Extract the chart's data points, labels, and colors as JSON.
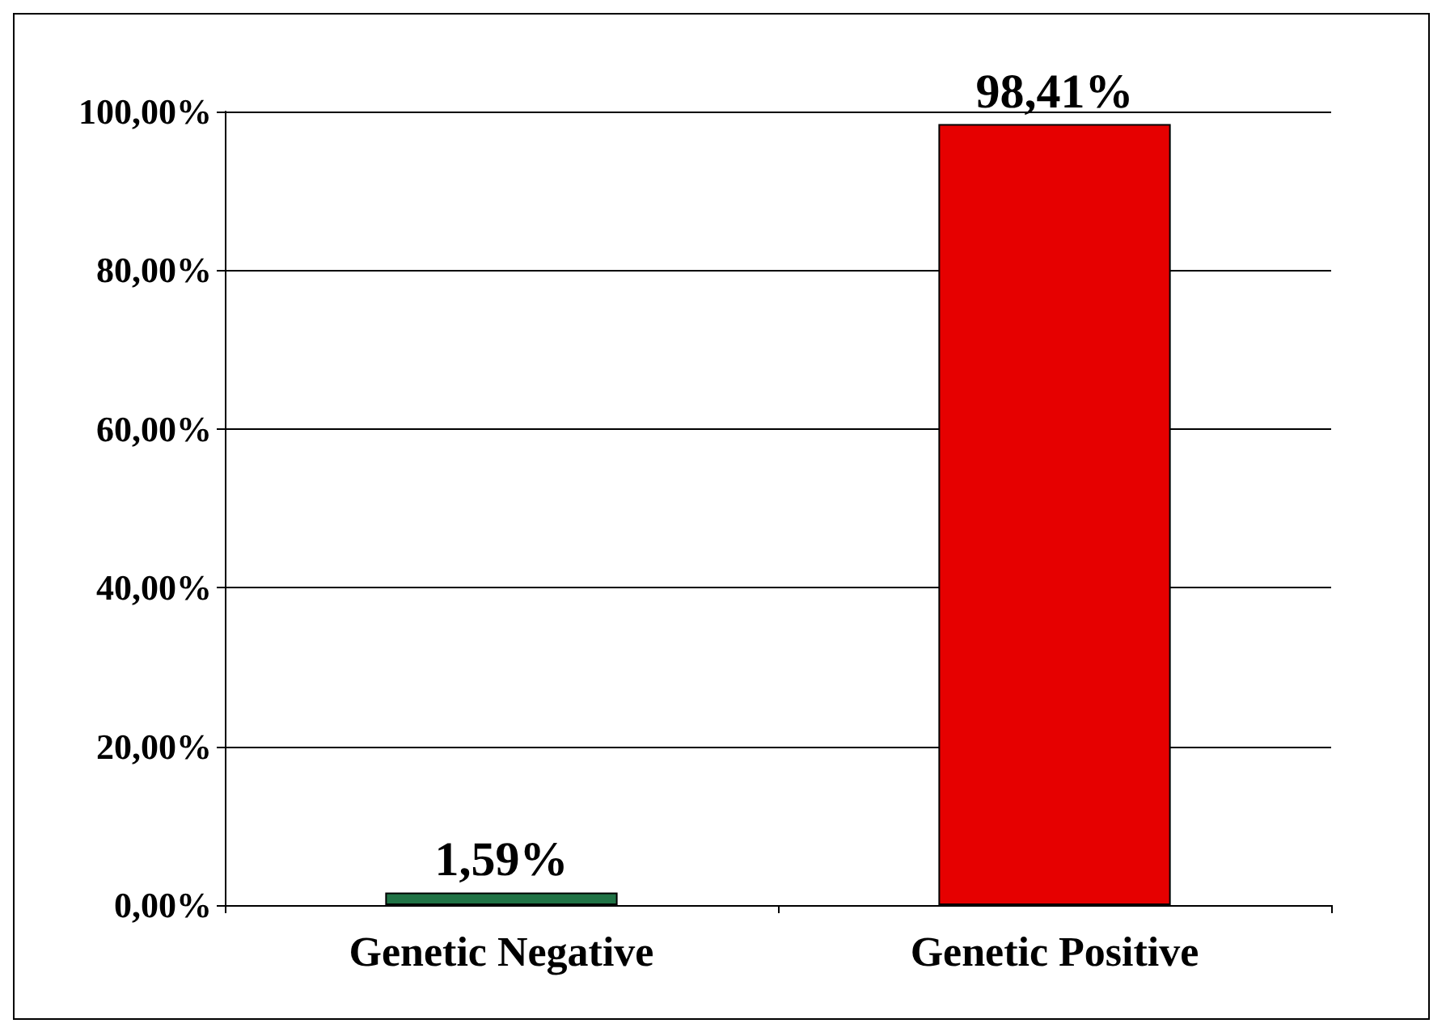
{
  "chart_data": {
    "type": "bar",
    "categories": [
      "Genetic Negative",
      "Genetic Positive"
    ],
    "values": [
      1.59,
      98.41
    ],
    "colors": [
      "#217346",
      "#e60000"
    ],
    "value_labels": [
      "1,59%",
      "98,41%"
    ],
    "ylim": [
      0,
      100
    ],
    "yticks": [
      {
        "value": 0,
        "label": "0,00%"
      },
      {
        "value": 20,
        "label": "20,00%"
      },
      {
        "value": 40,
        "label": "40,00%"
      },
      {
        "value": 60,
        "label": "60,00%"
      },
      {
        "value": 80,
        "label": "80,00%"
      },
      {
        "value": 100,
        "label": "100,00%"
      }
    ],
    "grid": "y"
  }
}
